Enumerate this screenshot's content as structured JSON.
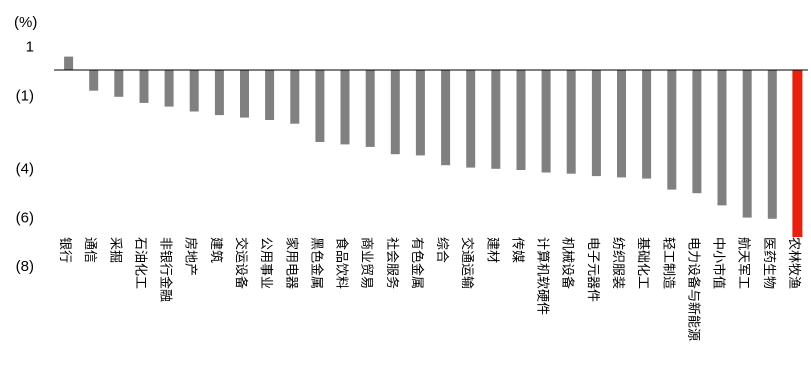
{
  "chart_data": {
    "type": "bar",
    "unit_label": "(%)",
    "yticks": [
      {
        "value": 1,
        "label": "1"
      },
      {
        "value": -1,
        "label": "(1)"
      },
      {
        "value": -4,
        "label": "(4)"
      },
      {
        "value": -6,
        "label": "(6)"
      },
      {
        "value": -8,
        "label": "(8)"
      }
    ],
    "ylim": [
      -8,
      1
    ],
    "grid": false,
    "legend": "none",
    "colors": {
      "default": "#808080",
      "highlight": "#e8200c",
      "axis": "#000000"
    },
    "highlight_category": "农林牧渔",
    "categories": [
      "银行",
      "通信",
      "采掘",
      "石油化工",
      "非银行金融",
      "房地产",
      "建筑",
      "交运设备",
      "公用事业",
      "家用电器",
      "黑色金属",
      "食品饮料",
      "商业贸易",
      "社会服务",
      "有色金属",
      "综合",
      "交通运输",
      "建材",
      "传媒",
      "计算机软硬件",
      "机械设备",
      "电子元器件",
      "纺织服装",
      "基础化工",
      "轻工制造",
      "电力设备与新能源",
      "中小市值",
      "航天军工",
      "医药生物",
      "农林牧渔"
    ],
    "values": [
      0.55,
      -0.85,
      -1.1,
      -1.35,
      -1.5,
      -1.7,
      -1.85,
      -1.95,
      -2.05,
      -2.2,
      -2.95,
      -3.05,
      -3.15,
      -3.45,
      -3.5,
      -3.9,
      -4.0,
      -4.05,
      -4.1,
      -4.2,
      -4.25,
      -4.35,
      -4.4,
      -4.45,
      -4.9,
      -5.05,
      -5.55,
      -6.05,
      -6.1,
      -6.85
    ]
  }
}
